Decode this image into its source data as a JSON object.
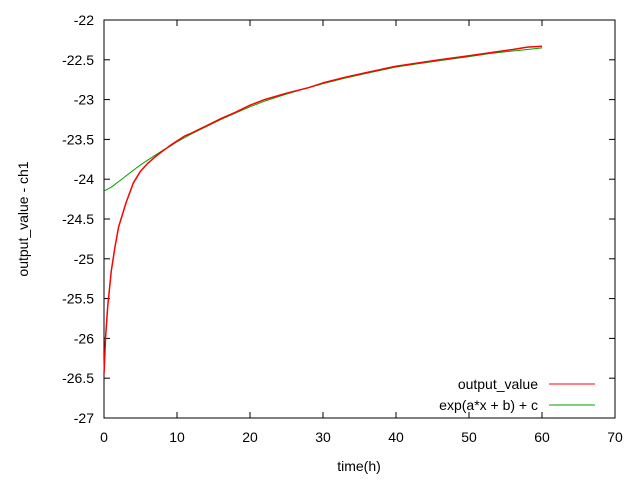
{
  "chart_data": {
    "type": "line",
    "xlabel": "time(h)",
    "ylabel": "output_value - ch1",
    "xlim": [
      0,
      70
    ],
    "ylim": [
      -27,
      -22
    ],
    "xticks": [
      0,
      10,
      20,
      30,
      40,
      50,
      60,
      70
    ],
    "yticks": [
      -27,
      -26.5,
      -26,
      -25.5,
      -25,
      -24.5,
      -24,
      -23.5,
      -23,
      -22.5,
      -22
    ],
    "grid": false,
    "legend_position": "bottom-right",
    "series": [
      {
        "name": "output_value",
        "color": "#ff0000",
        "x": [
          0,
          0.2,
          0.5,
          1,
          1.5,
          2,
          3,
          4,
          5,
          6,
          7,
          8,
          9,
          10,
          11,
          12,
          14,
          16,
          18,
          20,
          22,
          25,
          28,
          30,
          33,
          36,
          40,
          43,
          46,
          50,
          53,
          56,
          58,
          60
        ],
        "y": [
          -26.45,
          -26.0,
          -25.6,
          -25.15,
          -24.85,
          -24.6,
          -24.3,
          -24.05,
          -23.9,
          -23.8,
          -23.72,
          -23.65,
          -23.58,
          -23.52,
          -23.46,
          -23.42,
          -23.33,
          -23.24,
          -23.16,
          -23.07,
          -23.0,
          -22.92,
          -22.85,
          -22.79,
          -22.72,
          -22.66,
          -22.58,
          -22.54,
          -22.5,
          -22.45,
          -22.41,
          -22.37,
          -22.34,
          -22.33
        ]
      },
      {
        "name": "exp(a*x + b) + c",
        "color": "#00a000",
        "x": [
          0,
          1,
          2,
          3,
          4,
          5,
          6,
          7,
          8,
          9,
          10,
          12,
          14,
          16,
          18,
          20,
          22,
          25,
          28,
          30,
          33,
          36,
          40,
          43,
          46,
          50,
          53,
          56,
          58,
          60
        ],
        "y": [
          -24.15,
          -24.1,
          -24.03,
          -23.96,
          -23.89,
          -23.82,
          -23.76,
          -23.7,
          -23.64,
          -23.59,
          -23.53,
          -23.43,
          -23.34,
          -23.25,
          -23.17,
          -23.09,
          -23.02,
          -22.93,
          -22.85,
          -22.8,
          -22.73,
          -22.67,
          -22.59,
          -22.55,
          -22.51,
          -22.46,
          -22.42,
          -22.39,
          -22.37,
          -22.35
        ]
      }
    ]
  }
}
